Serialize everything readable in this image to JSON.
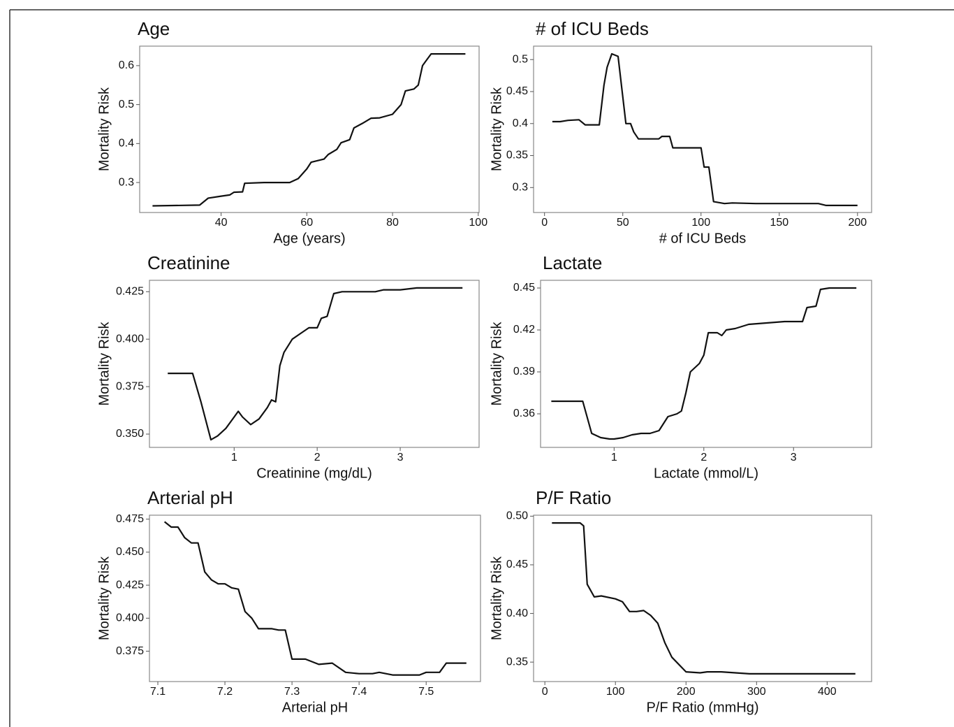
{
  "chart_data": [
    {
      "type": "line",
      "title": "Age",
      "x_label": "Age (years)",
      "y_label": "Mortality Risk",
      "color": "#111111",
      "x": [
        24,
        35,
        37,
        40,
        42,
        43,
        45,
        45.5,
        50,
        56,
        58,
        60,
        61,
        64,
        65,
        67,
        68,
        70,
        71,
        73,
        75,
        77,
        80,
        82,
        83,
        85,
        86,
        87,
        88,
        89,
        97
      ],
      "values": [
        0.24,
        0.242,
        0.26,
        0.265,
        0.268,
        0.275,
        0.276,
        0.298,
        0.3,
        0.3,
        0.31,
        0.335,
        0.352,
        0.36,
        0.372,
        0.385,
        0.402,
        0.41,
        0.44,
        0.452,
        0.465,
        0.466,
        0.475,
        0.5,
        0.535,
        0.54,
        0.55,
        0.6,
        0.615,
        0.63,
        0.63
      ],
      "xlim": [
        21,
        100.2
      ],
      "ylim": [
        0.223,
        0.65
      ],
      "xticks": [
        40,
        60,
        80,
        100
      ],
      "yticks": [
        0.3,
        0.4,
        0.5,
        0.6
      ]
    },
    {
      "type": "line",
      "title": "# of ICU Beds",
      "x_label": "# of ICU Beds",
      "y_label": "Mortality Risk",
      "color": "#111111",
      "x": [
        5,
        10,
        15,
        22,
        26,
        35,
        38,
        40,
        43,
        47,
        52,
        55,
        57,
        60,
        73,
        75,
        80,
        82,
        100,
        102,
        105,
        108,
        115,
        120,
        135,
        175,
        180,
        200
      ],
      "values": [
        0.403,
        0.403,
        0.405,
        0.406,
        0.398,
        0.398,
        0.46,
        0.488,
        0.509,
        0.505,
        0.4,
        0.4,
        0.387,
        0.376,
        0.376,
        0.38,
        0.38,
        0.362,
        0.362,
        0.332,
        0.332,
        0.278,
        0.275,
        0.276,
        0.275,
        0.275,
        0.272,
        0.272
      ],
      "xlim": [
        -7,
        209
      ],
      "ylim": [
        0.261,
        0.521
      ],
      "xticks": [
        0,
        50,
        100,
        150,
        200
      ],
      "yticks": [
        0.3,
        0.35,
        0.4,
        0.45,
        0.5
      ]
    },
    {
      "type": "line",
      "title": "Creatinine",
      "x_label": "Creatinine (mg/dL)",
      "y_label": "Mortality Risk",
      "color": "#111111",
      "x": [
        0.2,
        0.5,
        0.6,
        0.72,
        0.8,
        0.9,
        1.0,
        1.05,
        1.1,
        1.2,
        1.3,
        1.4,
        1.45,
        1.5,
        1.55,
        1.6,
        1.7,
        1.8,
        1.9,
        2.0,
        2.05,
        2.12,
        2.2,
        2.3,
        2.7,
        2.8,
        3.0,
        3.2,
        3.75
      ],
      "values": [
        0.382,
        0.382,
        0.367,
        0.347,
        0.349,
        0.353,
        0.359,
        0.362,
        0.359,
        0.355,
        0.358,
        0.364,
        0.368,
        0.367,
        0.386,
        0.393,
        0.4,
        0.403,
        0.406,
        0.406,
        0.411,
        0.412,
        0.424,
        0.425,
        0.425,
        0.426,
        0.426,
        0.427,
        0.427
      ],
      "xlim": [
        -0.02,
        3.95
      ],
      "ylim": [
        0.343,
        0.431
      ],
      "xticks": [
        1,
        2,
        3
      ],
      "yticks": [
        {
          "value": 0.35,
          "label": "0.350"
        },
        0.375,
        {
          "value": 0.4,
          "label": "0.400"
        },
        0.425
      ]
    },
    {
      "type": "line",
      "title": "Lactate",
      "x_label": "Lactate (mmol/L)",
      "y_label": "Mortality Risk",
      "color": "#111111",
      "x": [
        0.3,
        0.65,
        0.75,
        0.85,
        0.95,
        1.0,
        1.1,
        1.2,
        1.3,
        1.4,
        1.5,
        1.6,
        1.7,
        1.75,
        1.8,
        1.85,
        1.95,
        2.0,
        2.05,
        2.15,
        2.2,
        2.25,
        2.35,
        2.5,
        2.7,
        2.9,
        3.1,
        3.15,
        3.25,
        3.3,
        3.4,
        3.7
      ],
      "values": [
        0.369,
        0.369,
        0.346,
        0.343,
        0.342,
        0.342,
        0.343,
        0.345,
        0.346,
        0.346,
        0.348,
        0.358,
        0.36,
        0.362,
        0.375,
        0.39,
        0.396,
        0.402,
        0.418,
        0.418,
        0.416,
        0.42,
        0.421,
        0.424,
        0.425,
        0.426,
        0.426,
        0.436,
        0.437,
        0.449,
        0.45,
        0.45
      ],
      "xlim": [
        0.18,
        3.87
      ],
      "ylim": [
        0.336,
        0.4555
      ],
      "xticks": [
        1,
        2,
        3
      ],
      "yticks": [
        0.36,
        0.39,
        0.42,
        0.45
      ]
    },
    {
      "type": "line",
      "title": "Arterial pH",
      "x_label": "Arterial pH",
      "y_label": "Mortality Risk",
      "color": "#111111",
      "x": [
        7.11,
        7.12,
        7.13,
        7.14,
        7.15,
        7.16,
        7.17,
        7.18,
        7.19,
        7.2,
        7.21,
        7.22,
        7.23,
        7.24,
        7.25,
        7.27,
        7.28,
        7.29,
        7.3,
        7.32,
        7.34,
        7.36,
        7.38,
        7.4,
        7.42,
        7.43,
        7.45,
        7.49,
        7.5,
        7.52,
        7.53,
        7.56
      ],
      "values": [
        0.473,
        0.469,
        0.469,
        0.461,
        0.457,
        0.457,
        0.435,
        0.429,
        0.426,
        0.426,
        0.423,
        0.422,
        0.405,
        0.4,
        0.392,
        0.392,
        0.391,
        0.391,
        0.369,
        0.369,
        0.365,
        0.366,
        0.359,
        0.358,
        0.358,
        0.359,
        0.357,
        0.357,
        0.359,
        0.359,
        0.366,
        0.366
      ],
      "xlim": [
        7.0875,
        7.581
      ],
      "ylim": [
        0.352,
        0.478
      ],
      "xticks": [
        7.1,
        7.2,
        7.3,
        7.4,
        7.5
      ],
      "yticks": [
        0.375,
        {
          "value": 0.4,
          "label": "0.400"
        },
        0.425,
        {
          "value": 0.45,
          "label": "0.450"
        },
        0.475
      ]
    },
    {
      "type": "line",
      "title": "P/F Ratio",
      "x_label": "P/F Ratio (mmHg)",
      "y_label": "Mortality Risk",
      "color": "#111111",
      "x": [
        10,
        50,
        55,
        60,
        70,
        80,
        100,
        110,
        120,
        130,
        140,
        150,
        160,
        170,
        180,
        200,
        220,
        230,
        250,
        270,
        290,
        440
      ],
      "values": [
        0.493,
        0.493,
        0.49,
        0.43,
        0.417,
        0.418,
        0.415,
        0.412,
        0.402,
        0.402,
        0.403,
        0.398,
        0.39,
        0.37,
        0.355,
        0.34,
        0.339,
        0.34,
        0.34,
        0.339,
        0.338,
        0.338
      ],
      "xlim": [
        -16,
        463
      ],
      "ylim": [
        0.33,
        0.501
      ],
      "xticks": [
        0,
        100,
        200,
        300,
        400
      ],
      "yticks": [
        {
          "value": 0.35,
          "label": "0.35"
        },
        {
          "value": 0.4,
          "label": "0.40"
        },
        0.45,
        {
          "value": 0.5,
          "label": "0.50"
        }
      ]
    }
  ]
}
